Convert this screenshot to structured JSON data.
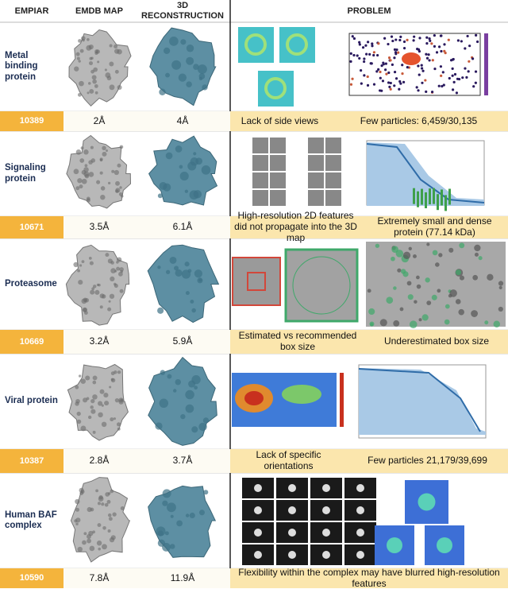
{
  "header": [
    "EMPIAR",
    "EMDB MAP",
    "3D RECONSTRUCTION",
    "PROBLEM"
  ],
  "rows": [
    {
      "name": "Metal binding protein",
      "empiar": "10389",
      "emdb": "2Å",
      "recon": "4Å",
      "problems": [
        "Lack of side views",
        "Few particles: 6,459/30,135"
      ]
    },
    {
      "name": "Signaling protein",
      "empiar": "10671",
      "emdb": "3.5Å",
      "recon": "6.1Å",
      "problems": [
        "High-resolution 2D features did not propagate into the 3D map",
        "Extremely small and dense protein (77.14 kDa)"
      ]
    },
    {
      "name": "Proteasome",
      "empiar": "10669",
      "emdb": "3.2Å",
      "recon": "5.9Å",
      "problems": [
        "Estimated vs recommended box size",
        "Underestimated box size"
      ]
    },
    {
      "name": "Viral protein",
      "empiar": "10387",
      "emdb": "2.8Å",
      "recon": "3.7Å",
      "problems": [
        "Lack of specific orientations",
        "Few particles 21,179/39,699"
      ]
    },
    {
      "name": "Human BAF complex",
      "empiar": "10590",
      "emdb": "7.8Å",
      "recon": "11.9Å",
      "problems": [
        "Flexibility within the complex may have blurred high-resolution features"
      ]
    }
  ]
}
